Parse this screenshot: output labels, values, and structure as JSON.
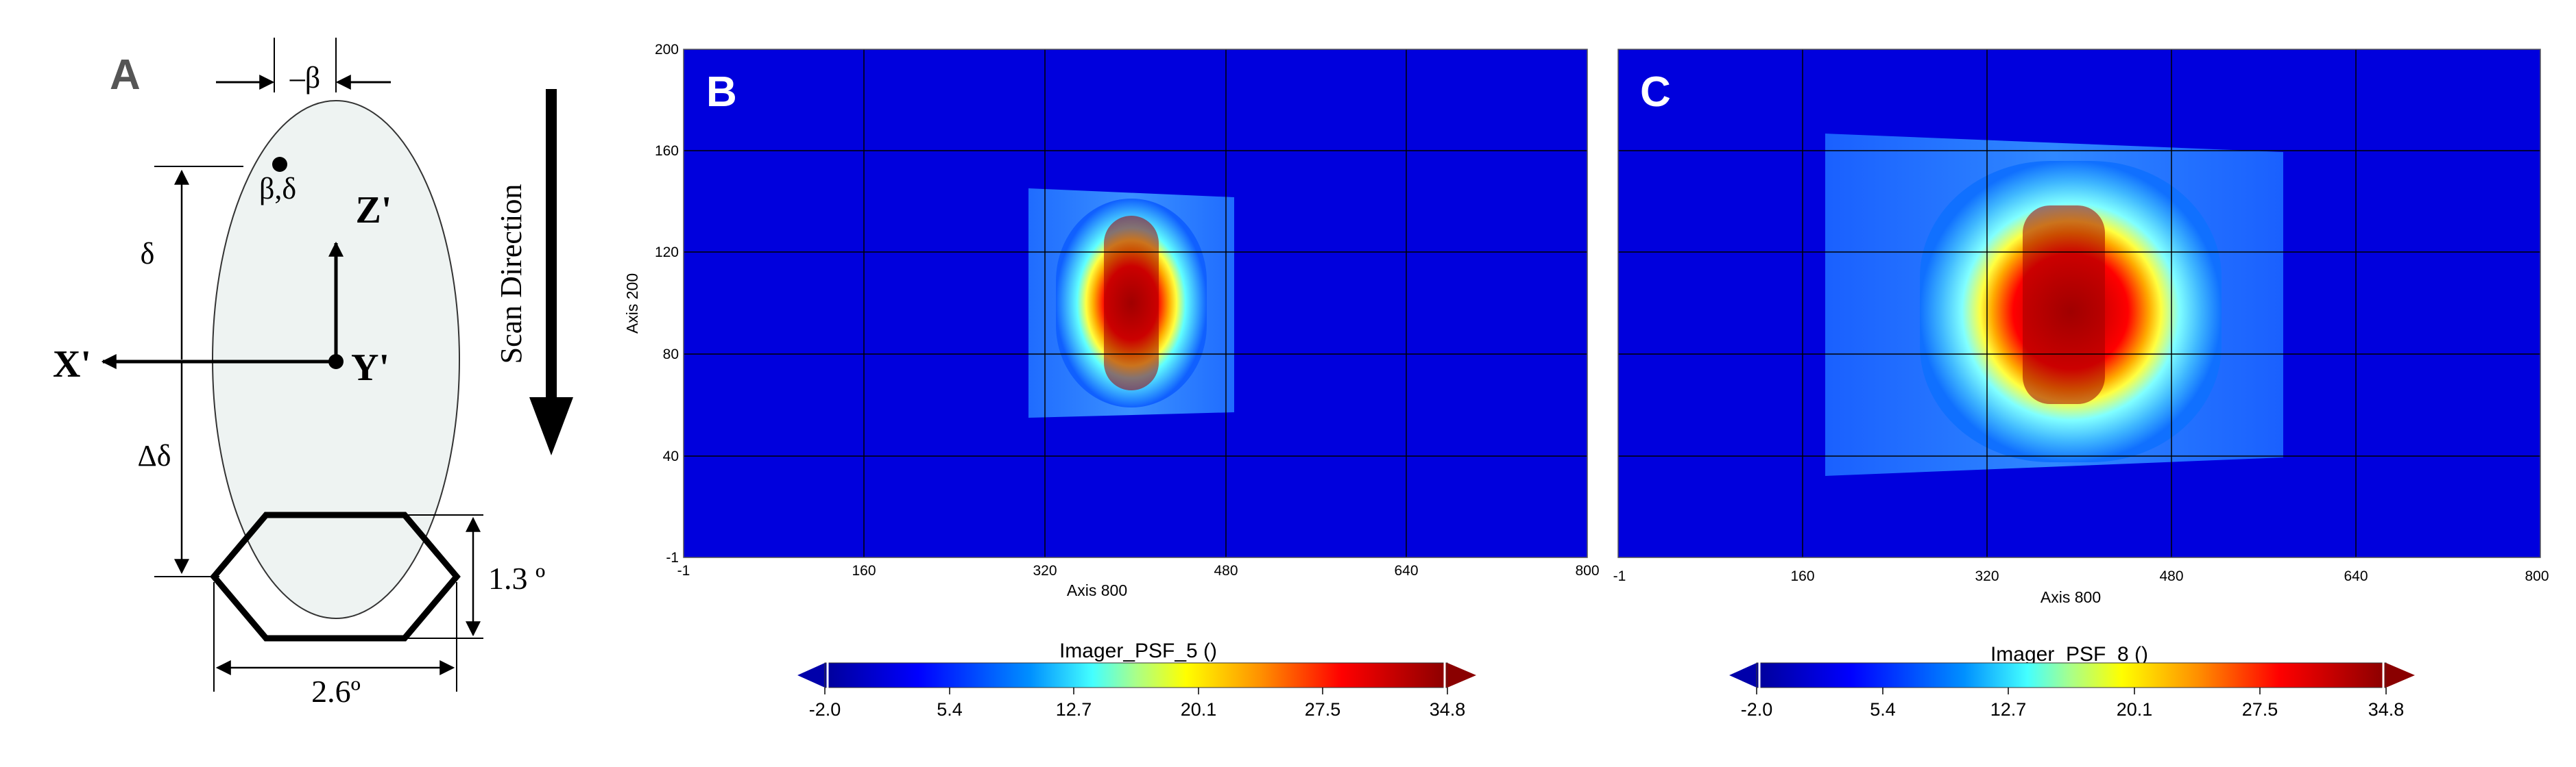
{
  "panel_a": {
    "letter": "A",
    "beta_label": "–β",
    "point_label": "β,δ",
    "delta_label": "δ",
    "delta_delta_label": "Δδ",
    "z_label": "Z'",
    "x_label": "X'",
    "y_label": "Y'",
    "scan_label": "Scan Direction",
    "height_label": "1.3 º",
    "width_label": "2.6º",
    "colors": {
      "ellipse_fill": "#eef3f2"
    }
  },
  "panel_b": {
    "letter": "B",
    "x_ticks": [
      "-1",
      "160",
      "320",
      "480",
      "640",
      "800"
    ],
    "y_ticks": [
      "200",
      "160",
      "120",
      "80",
      "40",
      "-1"
    ],
    "x_axis_label": "Axis 800",
    "y_axis_label": "Axis 200",
    "colorbar_title": "Imager_PSF_5 ()"
  },
  "panel_c": {
    "letter": "C",
    "x_ticks": [
      "-1",
      "160",
      "320",
      "480",
      "640",
      "800"
    ],
    "x_axis_label": "Axis 800",
    "colorbar_title": "Imager_PSF_8 ()"
  },
  "colorbar": {
    "ticks": [
      "-2.0",
      "5.4",
      "12.7",
      "20.1",
      "27.5",
      "34.8"
    ],
    "colors": [
      "#00008f",
      "#0000ff",
      "#0080ff",
      "#00ffff",
      "#80ff80",
      "#ffff00",
      "#ff8000",
      "#ff0000",
      "#800000"
    ]
  },
  "colors": {
    "background_blue": "#0000dd",
    "grid": "#000000"
  }
}
